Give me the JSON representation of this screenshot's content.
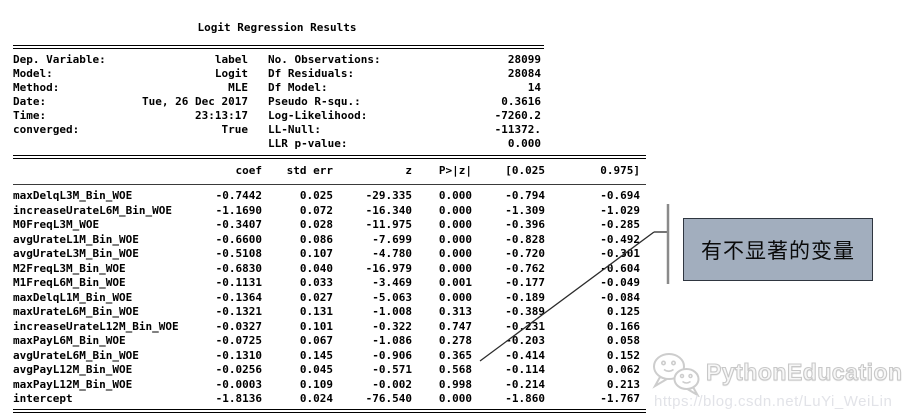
{
  "report": {
    "title": "Logit Regression Results",
    "summary_rows": [
      {
        "l": "Dep. Variable:",
        "lv": "label",
        "r": "No. Observations:",
        "rv": "28099"
      },
      {
        "l": "Model:",
        "lv": "Logit",
        "r": "Df Residuals:",
        "rv": "28084"
      },
      {
        "l": "Method:",
        "lv": "MLE",
        "r": "Df Model:",
        "rv": "14"
      },
      {
        "l": "Date:",
        "lv": "Tue, 26 Dec 2017",
        "r": "Pseudo R-squ.:",
        "rv": "0.3616"
      },
      {
        "l": "Time:",
        "lv": "23:13:17",
        "r": "Log-Likelihood:",
        "rv": "-7260.2"
      },
      {
        "l": "converged:",
        "lv": "True",
        "r": "LL-Null:",
        "rv": "-11372."
      },
      {
        "l": "",
        "lv": "",
        "r": "LLR p-value:",
        "rv": "0.000"
      }
    ],
    "params_table": {
      "headers": [
        "coef",
        "std err",
        "z",
        "P>|z|",
        "[0.025",
        "0.975]"
      ],
      "rows": [
        {
          "name": "maxDelqL3M_Bin_WOE",
          "coef": "-0.7442",
          "std_err": "0.025",
          "z": "-29.335",
          "p": "0.000",
          "ci_low": "-0.794",
          "ci_high": "-0.694"
        },
        {
          "name": "increaseUrateL6M_Bin_WOE",
          "coef": "-1.1690",
          "std_err": "0.072",
          "z": "-16.340",
          "p": "0.000",
          "ci_low": "-1.309",
          "ci_high": "-1.029"
        },
        {
          "name": "M0FreqL3M_WOE",
          "coef": "-0.3407",
          "std_err": "0.028",
          "z": "-11.975",
          "p": "0.000",
          "ci_low": "-0.396",
          "ci_high": "-0.285"
        },
        {
          "name": "avgUrateL1M_Bin_WOE",
          "coef": "-0.6600",
          "std_err": "0.086",
          "z": "-7.699",
          "p": "0.000",
          "ci_low": "-0.828",
          "ci_high": "-0.492"
        },
        {
          "name": "avgUrateL3M_Bin_WOE",
          "coef": "-0.5108",
          "std_err": "0.107",
          "z": "-4.780",
          "p": "0.000",
          "ci_low": "-0.720",
          "ci_high": "-0.301"
        },
        {
          "name": "M2FreqL3M_Bin_WOE",
          "coef": "-0.6830",
          "std_err": "0.040",
          "z": "-16.979",
          "p": "0.000",
          "ci_low": "-0.762",
          "ci_high": "-0.604"
        },
        {
          "name": "M1FreqL6M_Bin_WOE",
          "coef": "-0.1131",
          "std_err": "0.033",
          "z": "-3.469",
          "p": "0.001",
          "ci_low": "-0.177",
          "ci_high": "-0.049"
        },
        {
          "name": "maxDelqL1M_Bin_WOE",
          "coef": "-0.1364",
          "std_err": "0.027",
          "z": "-5.063",
          "p": "0.000",
          "ci_low": "-0.189",
          "ci_high": "-0.084"
        },
        {
          "name": "maxUrateL6M_Bin_WOE",
          "coef": "-0.1321",
          "std_err": "0.131",
          "z": "-1.008",
          "p": "0.313",
          "ci_low": "-0.389",
          "ci_high": "0.125"
        },
        {
          "name": "increaseUrateL12M_Bin_WOE",
          "coef": "-0.0327",
          "std_err": "0.101",
          "z": "-0.322",
          "p": "0.747",
          "ci_low": "-0.231",
          "ci_high": "0.166"
        },
        {
          "name": "maxPayL6M_Bin_WOE",
          "coef": "-0.0725",
          "std_err": "0.067",
          "z": "-1.086",
          "p": "0.278",
          "ci_low": "-0.203",
          "ci_high": "0.058"
        },
        {
          "name": "avgUrateL6M_Bin_WOE",
          "coef": "-0.1310",
          "std_err": "0.145",
          "z": "-0.906",
          "p": "0.365",
          "ci_low": "-0.414",
          "ci_high": "0.152"
        },
        {
          "name": "avgPayL12M_Bin_WOE",
          "coef": "-0.0256",
          "std_err": "0.045",
          "z": "-0.571",
          "p": "0.568",
          "ci_low": "-0.114",
          "ci_high": "0.062"
        },
        {
          "name": "maxPayL12M_Bin_WOE",
          "coef": "-0.0003",
          "std_err": "0.109",
          "z": "-0.002",
          "p": "0.998",
          "ci_low": "-0.214",
          "ci_high": "0.213"
        },
        {
          "name": "intercept",
          "coef": "-1.8136",
          "std_err": "0.024",
          "z": "-76.540",
          "p": "0.000",
          "ci_low": "-1.860",
          "ci_high": "-1.767"
        }
      ]
    }
  },
  "annotation": {
    "label": "有不显著的变量",
    "icon": "callout-line"
  },
  "watermark": {
    "name": "PythonEducation",
    "url": "https://blog.csdn.net/LuYi_WeiLin",
    "icon": "wechat-icon"
  },
  "colors": {
    "text-color": "#000000",
    "annotation-fill": "#a2aebe",
    "annotation-border": "#2f3640",
    "line-color": "#2b2b2b",
    "bar-color": "#8a8a8a",
    "watermark-color": "#c8c8c8",
    "watermark-url-color": "#e2e3e8"
  }
}
